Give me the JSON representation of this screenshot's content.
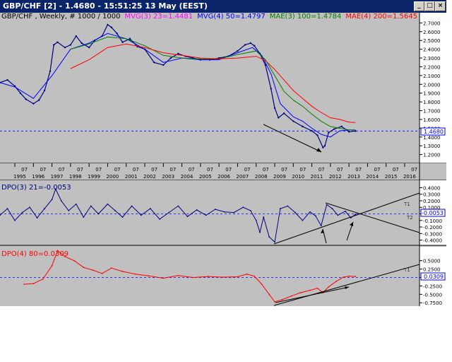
{
  "window": {
    "title": "GBP/CHF [2] - 1.4680 - 15:51:25  13 May (EEST)"
  },
  "colors": {
    "price": "#000080",
    "mvg3": "#ff00ff",
    "mvg4": "#0000ff",
    "mae3": "#008000",
    "mae4": "#ff0000",
    "dpo3": "#000080",
    "dpo4": "#ff0000",
    "trend": "#000000",
    "panel_bg": "#c0c0c0"
  },
  "legend": {
    "p0": "GBP/CHF , Weekly, # 1000 / 1000",
    "p1": "MVG(3) 23=1.4481",
    "p2": "MVG(4) 50=1.4797",
    "p3": "MAE(3) 100=1.4784",
    "p4": "MAE(4) 200=1.5645"
  },
  "dpo3_title": "DPO(3) 21=-0.0053",
  "dpo4_title": "DPO(4) 80=0.0309",
  "current_price_label": "1.4680",
  "dpo3_current_label": "-0.0053",
  "dpo4_current_label": "0.0309",
  "t1_label": "T1",
  "t2_label": "T2",
  "chart_data": [
    {
      "type": "line",
      "name": "price",
      "xlim": [
        1994.2,
        2016.8
      ],
      "ylim": [
        1.1,
        2.8
      ],
      "y_ticks": [
        "2.7000",
        "2.6000",
        "2.5000",
        "2.4000",
        "2.3000",
        "2.2000",
        "2.1000",
        "2.0000",
        "1.9000",
        "1.8000",
        "1.7000",
        "1.6000",
        "1.5000",
        "1.4000",
        "1.3000",
        "1.2000"
      ],
      "x_year_labels": [
        "1995",
        "1996",
        "1997",
        "1998",
        "1999",
        "2000",
        "2001",
        "2002",
        "2003",
        "2004",
        "2005",
        "2006",
        "2007",
        "2008",
        "2009",
        "2010",
        "2011",
        "2012",
        "2013",
        "2014",
        "2015",
        "2016"
      ],
      "x_month_label": "07",
      "current_value": 1.468,
      "series": [
        {
          "name": "GBP/CHF",
          "x": [
            1994.2,
            1994.6,
            1995.0,
            1995.3,
            1995.6,
            1996.0,
            1996.3,
            1996.6,
            1996.9,
            1997.1,
            1997.3,
            1997.7,
            1998.0,
            1998.3,
            1998.6,
            1999.0,
            1999.3,
            1999.7,
            2000.0,
            2000.2,
            2000.5,
            2000.8,
            2001.2,
            2001.6,
            2002.0,
            2002.5,
            2003.0,
            2003.4,
            2003.8,
            2004.2,
            2004.6,
            2005.0,
            2005.5,
            2006.0,
            2006.5,
            2007.0,
            2007.4,
            2007.7,
            2007.9,
            2008.2,
            2008.5,
            2008.8,
            2009.0,
            2009.2,
            2009.5,
            2010.0,
            2010.5,
            2011.0,
            2011.3,
            2011.6,
            2011.7,
            2011.9,
            2012.2,
            2012.6,
            2013.0,
            2013.35
          ],
          "y": [
            2.02,
            2.05,
            1.98,
            1.9,
            1.83,
            1.78,
            1.82,
            1.93,
            2.15,
            2.45,
            2.48,
            2.42,
            2.45,
            2.55,
            2.47,
            2.42,
            2.5,
            2.55,
            2.68,
            2.65,
            2.58,
            2.48,
            2.52,
            2.43,
            2.4,
            2.25,
            2.22,
            2.3,
            2.35,
            2.32,
            2.3,
            2.28,
            2.28,
            2.3,
            2.32,
            2.38,
            2.45,
            2.47,
            2.44,
            2.35,
            2.22,
            1.95,
            1.73,
            1.62,
            1.67,
            1.58,
            1.52,
            1.47,
            1.42,
            1.28,
            1.3,
            1.45,
            1.49,
            1.52,
            1.46,
            1.468
          ]
        },
        {
          "name": "MVG(4) 50",
          "x": [
            1994.2,
            1995.0,
            1996.0,
            1997.0,
            1998.0,
            1999.0,
            2000.0,
            2001.0,
            2002.0,
            2003.0,
            2004.0,
            2005.0,
            2006.0,
            2007.0,
            2007.8,
            2008.3,
            2008.8,
            2009.3,
            2010.0,
            2010.5,
            2011.0,
            2011.5,
            2012.0,
            2012.5,
            2013.0,
            2013.35
          ],
          "y": [
            2.02,
            1.97,
            1.84,
            2.1,
            2.4,
            2.47,
            2.58,
            2.52,
            2.4,
            2.25,
            2.3,
            2.28,
            2.28,
            2.36,
            2.42,
            2.33,
            2.12,
            1.78,
            1.63,
            1.58,
            1.5,
            1.43,
            1.4,
            1.47,
            1.48,
            1.48
          ]
        },
        {
          "name": "MAE(3) 100",
          "x": [
            1998.0,
            1999.0,
            2000.0,
            2001.0,
            2002.0,
            2003.0,
            2004.0,
            2005.0,
            2006.0,
            2007.0,
            2008.0,
            2008.5,
            2009.0,
            2009.5,
            2010.0,
            2010.5,
            2011.0,
            2011.5,
            2012.0,
            2012.5,
            2013.0,
            2013.35
          ],
          "y": [
            2.4,
            2.46,
            2.54,
            2.52,
            2.44,
            2.33,
            2.3,
            2.29,
            2.29,
            2.34,
            2.38,
            2.28,
            2.1,
            1.92,
            1.82,
            1.75,
            1.66,
            1.58,
            1.52,
            1.5,
            1.48,
            1.478
          ]
        },
        {
          "name": "MAE(4) 200",
          "x": [
            1998.0,
            1999.0,
            2000.0,
            2001.0,
            2002.0,
            2003.0,
            2004.0,
            2005.0,
            2006.0,
            2007.0,
            2008.0,
            2008.5,
            2009.0,
            2009.5,
            2010.0,
            2010.5,
            2011.0,
            2011.5,
            2012.0,
            2012.5,
            2013.0,
            2013.35
          ],
          "y": [
            2.18,
            2.28,
            2.42,
            2.46,
            2.42,
            2.36,
            2.33,
            2.3,
            2.29,
            2.3,
            2.32,
            2.27,
            2.17,
            2.05,
            1.93,
            1.84,
            1.75,
            1.68,
            1.62,
            1.6,
            1.57,
            1.5645
          ]
        }
      ]
    },
    {
      "type": "line",
      "name": "DPO(3) 21",
      "ylim": [
        -0.48,
        0.48
      ],
      "y_ticks": [
        "0.4000",
        "0.3000",
        "0.2000",
        "0.1000",
        "0.0000",
        "-0.1000",
        "-0.2000",
        "-0.3000",
        "-0.4000"
      ],
      "current_value": -0.0053,
      "series": [
        {
          "name": "DPO(3) 21",
          "x": [
            1994.2,
            1994.6,
            1995.0,
            1995.4,
            1995.8,
            1996.2,
            1996.6,
            1997.0,
            1997.2,
            1997.5,
            1997.9,
            1998.3,
            1998.7,
            1999.1,
            1999.5,
            2000.0,
            2000.4,
            2000.8,
            2001.3,
            2001.8,
            2002.3,
            2002.8,
            2003.3,
            2003.8,
            2004.3,
            2004.8,
            2005.3,
            2005.8,
            2006.3,
            2006.8,
            2007.3,
            2007.7,
            2008.0,
            2008.2,
            2008.4,
            2008.7,
            2009.0,
            2009.3,
            2009.7,
            2010.1,
            2010.5,
            2010.9,
            2011.2,
            2011.5,
            2011.8,
            2012.1,
            2012.4,
            2012.8,
            2013.1,
            2013.35
          ],
          "y": [
            -0.02,
            0.08,
            -0.1,
            0.02,
            0.1,
            -0.06,
            0.08,
            0.22,
            0.38,
            0.2,
            0.05,
            0.15,
            -0.05,
            0.12,
            0.0,
            0.15,
            0.05,
            -0.05,
            0.12,
            -0.02,
            0.08,
            -0.08,
            0.02,
            0.12,
            -0.04,
            0.06,
            -0.02,
            0.07,
            0.03,
            0.02,
            0.1,
            0.05,
            -0.1,
            -0.28,
            -0.05,
            -0.35,
            -0.43,
            0.08,
            0.12,
            0.02,
            -0.1,
            0.03,
            -0.03,
            -0.18,
            0.14,
            0.08,
            -0.02,
            0.04,
            -0.06,
            -0.005
          ]
        }
      ]
    },
    {
      "type": "line",
      "name": "DPO(4) 80",
      "ylim": [
        -0.85,
        0.85
      ],
      "y_ticks": [
        "0.5000",
        "0.2500",
        "0.0000",
        "-0.2500",
        "-0.5000",
        "-0.7500"
      ],
      "current_value": 0.0309,
      "series": [
        {
          "name": "DPO(4) 80",
          "x": [
            1995.5,
            1996.0,
            1996.5,
            1997.0,
            1997.3,
            1997.7,
            1998.2,
            1998.7,
            1999.2,
            1999.7,
            2000.2,
            2000.8,
            2001.5,
            2002.2,
            2003.0,
            2003.8,
            2004.6,
            2005.4,
            2006.2,
            2007.0,
            2007.5,
            2007.9,
            2008.3,
            2008.7,
            2009.0,
            2009.4,
            2009.9,
            2010.4,
            2010.9,
            2011.3,
            2011.6,
            2011.9,
            2012.3,
            2012.7,
            2013.0,
            2013.35
          ],
          "y": [
            -0.2,
            -0.18,
            -0.05,
            0.35,
            0.8,
            0.62,
            0.5,
            0.3,
            0.22,
            0.12,
            0.28,
            0.18,
            0.1,
            0.05,
            -0.02,
            0.06,
            0.0,
            0.03,
            0.01,
            0.02,
            0.1,
            0.04,
            -0.2,
            -0.5,
            -0.72,
            -0.66,
            -0.55,
            -0.45,
            -0.38,
            -0.32,
            -0.45,
            -0.28,
            -0.12,
            0.01,
            0.04,
            0.031
          ]
        }
      ]
    }
  ]
}
